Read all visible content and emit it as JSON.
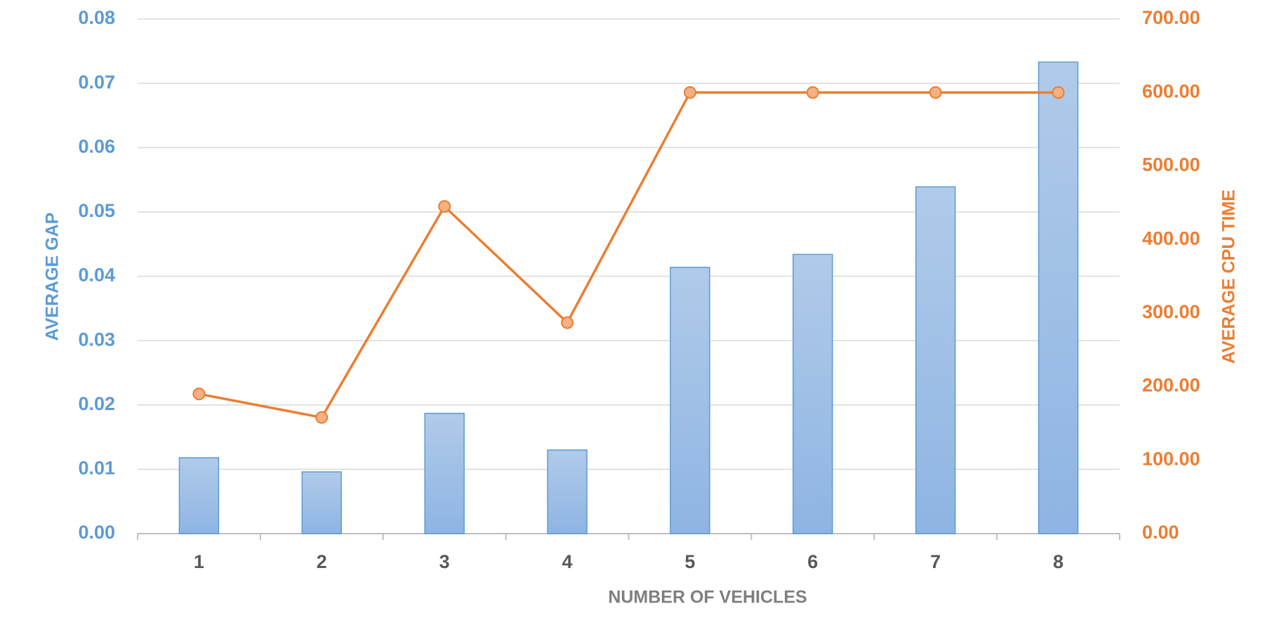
{
  "chart_data": {
    "type": "combo",
    "x_label": "NUMBER OF VEHICLES",
    "y_label": "AVERAGE GAP",
    "y2_label": "AVERAGE CPU TIME",
    "categories": [
      "1",
      "2",
      "3",
      "4",
      "5",
      "6",
      "7",
      "8"
    ],
    "series": [
      {
        "type": "bar",
        "color": "#5b9bd5",
        "values": [
          0.0118,
          0.0096,
          0.0187,
          0.013,
          0.0414,
          0.0434,
          0.0539,
          0.0733
        ]
      },
      {
        "type": "line",
        "axis": "y2",
        "color": "#ed7d31",
        "values": [
          190,
          158,
          445,
          287,
          600,
          600,
          600,
          600
        ]
      }
    ],
    "ylim": [
      0,
      0.08
    ],
    "yticks": [
      {
        "value": 0,
        "label": "0.00"
      },
      {
        "value": 0.01,
        "label": "0.01"
      },
      {
        "value": 0.02,
        "label": "0.02"
      },
      {
        "value": 0.03,
        "label": "0.03"
      },
      {
        "value": 0.04,
        "label": "0.04"
      },
      {
        "value": 0.05,
        "label": "0.05"
      },
      {
        "value": 0.06,
        "label": "0.06"
      },
      {
        "value": 0.07,
        "label": "0.07"
      },
      {
        "value": 0.08,
        "label": "0.08"
      }
    ],
    "y2lim": [
      0,
      700
    ],
    "y2ticks": [
      {
        "value": 0,
        "label": "0.00"
      },
      {
        "value": 100,
        "label": "100.00"
      },
      {
        "value": 200,
        "label": "200.00"
      },
      {
        "value": 300,
        "label": "300.00"
      },
      {
        "value": 400,
        "label": "400.00"
      },
      {
        "value": 500,
        "label": "500.00"
      },
      {
        "value": 600,
        "label": "600.00"
      },
      {
        "value": 700,
        "label": "700.00"
      }
    ],
    "grid": true
  }
}
